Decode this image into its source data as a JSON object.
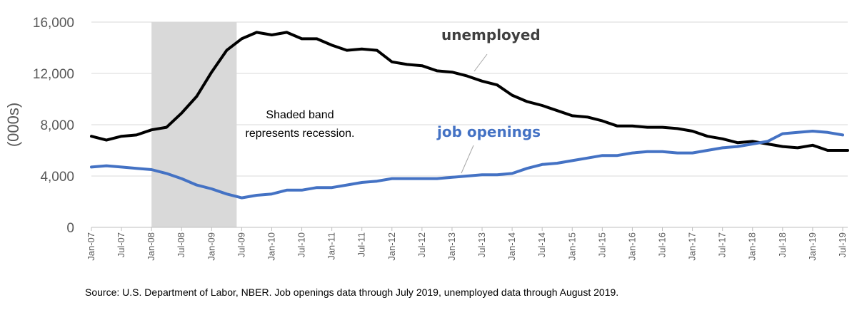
{
  "chart_data": {
    "type": "line",
    "ylabel": "(000s)",
    "ylim": [
      0,
      16000
    ],
    "yticks": [
      0,
      4000,
      8000,
      12000,
      16000
    ],
    "ytick_labels": [
      "0",
      "4,000",
      "8,000",
      "12,000",
      "16,000"
    ],
    "xlim": [
      "Jan-07",
      "Aug-19"
    ],
    "xtick_labels": [
      "Jan-07",
      "Jul-07",
      "Jan-08",
      "Jul-08",
      "Jan-09",
      "Jul-09",
      "Jan-10",
      "Jul-10",
      "Jan-11",
      "Jul-11",
      "Jan-12",
      "Jul-12",
      "Jan-13",
      "Jul-13",
      "Jan-14",
      "Jul-14",
      "Jan-15",
      "Jul-15",
      "Jan-16",
      "Jul-16",
      "Jan-17",
      "Jul-17",
      "Jan-18",
      "Jul-18",
      "Jan-19",
      "Jul-19"
    ],
    "grid": "horizontal",
    "recession": {
      "start": "Jan-08",
      "end": "Jun-09"
    },
    "annotation": "Shaded band\nrepresents recession.",
    "series": [
      {
        "name": "unemployed",
        "color": "#000000",
        "points": [
          [
            "Jan-07",
            7100
          ],
          [
            "Apr-07",
            6800
          ],
          [
            "Jul-07",
            7100
          ],
          [
            "Oct-07",
            7200
          ],
          [
            "Jan-08",
            7600
          ],
          [
            "Apr-08",
            7800
          ],
          [
            "Jul-08",
            8900
          ],
          [
            "Oct-08",
            10200
          ],
          [
            "Jan-09",
            12100
          ],
          [
            "Apr-09",
            13800
          ],
          [
            "Jul-09",
            14700
          ],
          [
            "Oct-09",
            15200
          ],
          [
            "Jan-10",
            15000
          ],
          [
            "Apr-10",
            15200
          ],
          [
            "Jul-10",
            14700
          ],
          [
            "Oct-10",
            14700
          ],
          [
            "Jan-11",
            14200
          ],
          [
            "Apr-11",
            13800
          ],
          [
            "Jul-11",
            13900
          ],
          [
            "Oct-11",
            13800
          ],
          [
            "Jan-12",
            12900
          ],
          [
            "Apr-12",
            12700
          ],
          [
            "Jul-12",
            12600
          ],
          [
            "Oct-12",
            12200
          ],
          [
            "Jan-13",
            12100
          ],
          [
            "Apr-13",
            11800
          ],
          [
            "Jul-13",
            11400
          ],
          [
            "Oct-13",
            11100
          ],
          [
            "Jan-14",
            10300
          ],
          [
            "Apr-14",
            9800
          ],
          [
            "Jul-14",
            9500
          ],
          [
            "Oct-14",
            9100
          ],
          [
            "Jan-15",
            8700
          ],
          [
            "Apr-15",
            8600
          ],
          [
            "Jul-15",
            8300
          ],
          [
            "Oct-15",
            7900
          ],
          [
            "Jan-16",
            7900
          ],
          [
            "Apr-16",
            7800
          ],
          [
            "Jul-16",
            7800
          ],
          [
            "Oct-16",
            7700
          ],
          [
            "Jan-17",
            7500
          ],
          [
            "Apr-17",
            7100
          ],
          [
            "Jul-17",
            6900
          ],
          [
            "Oct-17",
            6600
          ],
          [
            "Jan-18",
            6700
          ],
          [
            "Apr-18",
            6500
          ],
          [
            "Jul-18",
            6300
          ],
          [
            "Oct-18",
            6200
          ],
          [
            "Jan-19",
            6400
          ],
          [
            "Apr-19",
            6000
          ],
          [
            "Jul-19",
            6000
          ],
          [
            "Aug-19",
            6000
          ]
        ]
      },
      {
        "name": "job openings",
        "color": "#4472c4",
        "points": [
          [
            "Jan-07",
            4700
          ],
          [
            "Apr-07",
            4800
          ],
          [
            "Jul-07",
            4700
          ],
          [
            "Oct-07",
            4600
          ],
          [
            "Jan-08",
            4500
          ],
          [
            "Apr-08",
            4200
          ],
          [
            "Jul-08",
            3800
          ],
          [
            "Oct-08",
            3300
          ],
          [
            "Jan-09",
            3000
          ],
          [
            "Apr-09",
            2600
          ],
          [
            "Jul-09",
            2300
          ],
          [
            "Oct-09",
            2500
          ],
          [
            "Jan-10",
            2600
          ],
          [
            "Apr-10",
            2900
          ],
          [
            "Jul-10",
            2900
          ],
          [
            "Oct-10",
            3100
          ],
          [
            "Jan-11",
            3100
          ],
          [
            "Apr-11",
            3300
          ],
          [
            "Jul-11",
            3500
          ],
          [
            "Oct-11",
            3600
          ],
          [
            "Jan-12",
            3800
          ],
          [
            "Apr-12",
            3800
          ],
          [
            "Jul-12",
            3800
          ],
          [
            "Oct-12",
            3800
          ],
          [
            "Jan-13",
            3900
          ],
          [
            "Apr-13",
            4000
          ],
          [
            "Jul-13",
            4100
          ],
          [
            "Oct-13",
            4100
          ],
          [
            "Jan-14",
            4200
          ],
          [
            "Apr-14",
            4600
          ],
          [
            "Jul-14",
            4900
          ],
          [
            "Oct-14",
            5000
          ],
          [
            "Jan-15",
            5200
          ],
          [
            "Apr-15",
            5400
          ],
          [
            "Jul-15",
            5600
          ],
          [
            "Oct-15",
            5600
          ],
          [
            "Jan-16",
            5800
          ],
          [
            "Apr-16",
            5900
          ],
          [
            "Jul-16",
            5900
          ],
          [
            "Oct-16",
            5800
          ],
          [
            "Jan-17",
            5800
          ],
          [
            "Apr-17",
            6000
          ],
          [
            "Jul-17",
            6200
          ],
          [
            "Oct-17",
            6300
          ],
          [
            "Jan-18",
            6500
          ],
          [
            "Apr-18",
            6700
          ],
          [
            "Jul-18",
            7300
          ],
          [
            "Oct-18",
            7400
          ],
          [
            "Jan-19",
            7500
          ],
          [
            "Apr-19",
            7400
          ],
          [
            "Jul-19",
            7200
          ]
        ]
      }
    ]
  },
  "source": "Source: U.S. Department of Labor, NBER. Job openings data through July 2019, unemployed data through August 2019.",
  "colors": {
    "unemployed": "#000000",
    "job_openings": "#4472c4",
    "recession_band": "#d9d9d9",
    "grid": "#d9d9d9",
    "axis": "#bfbfbf"
  }
}
